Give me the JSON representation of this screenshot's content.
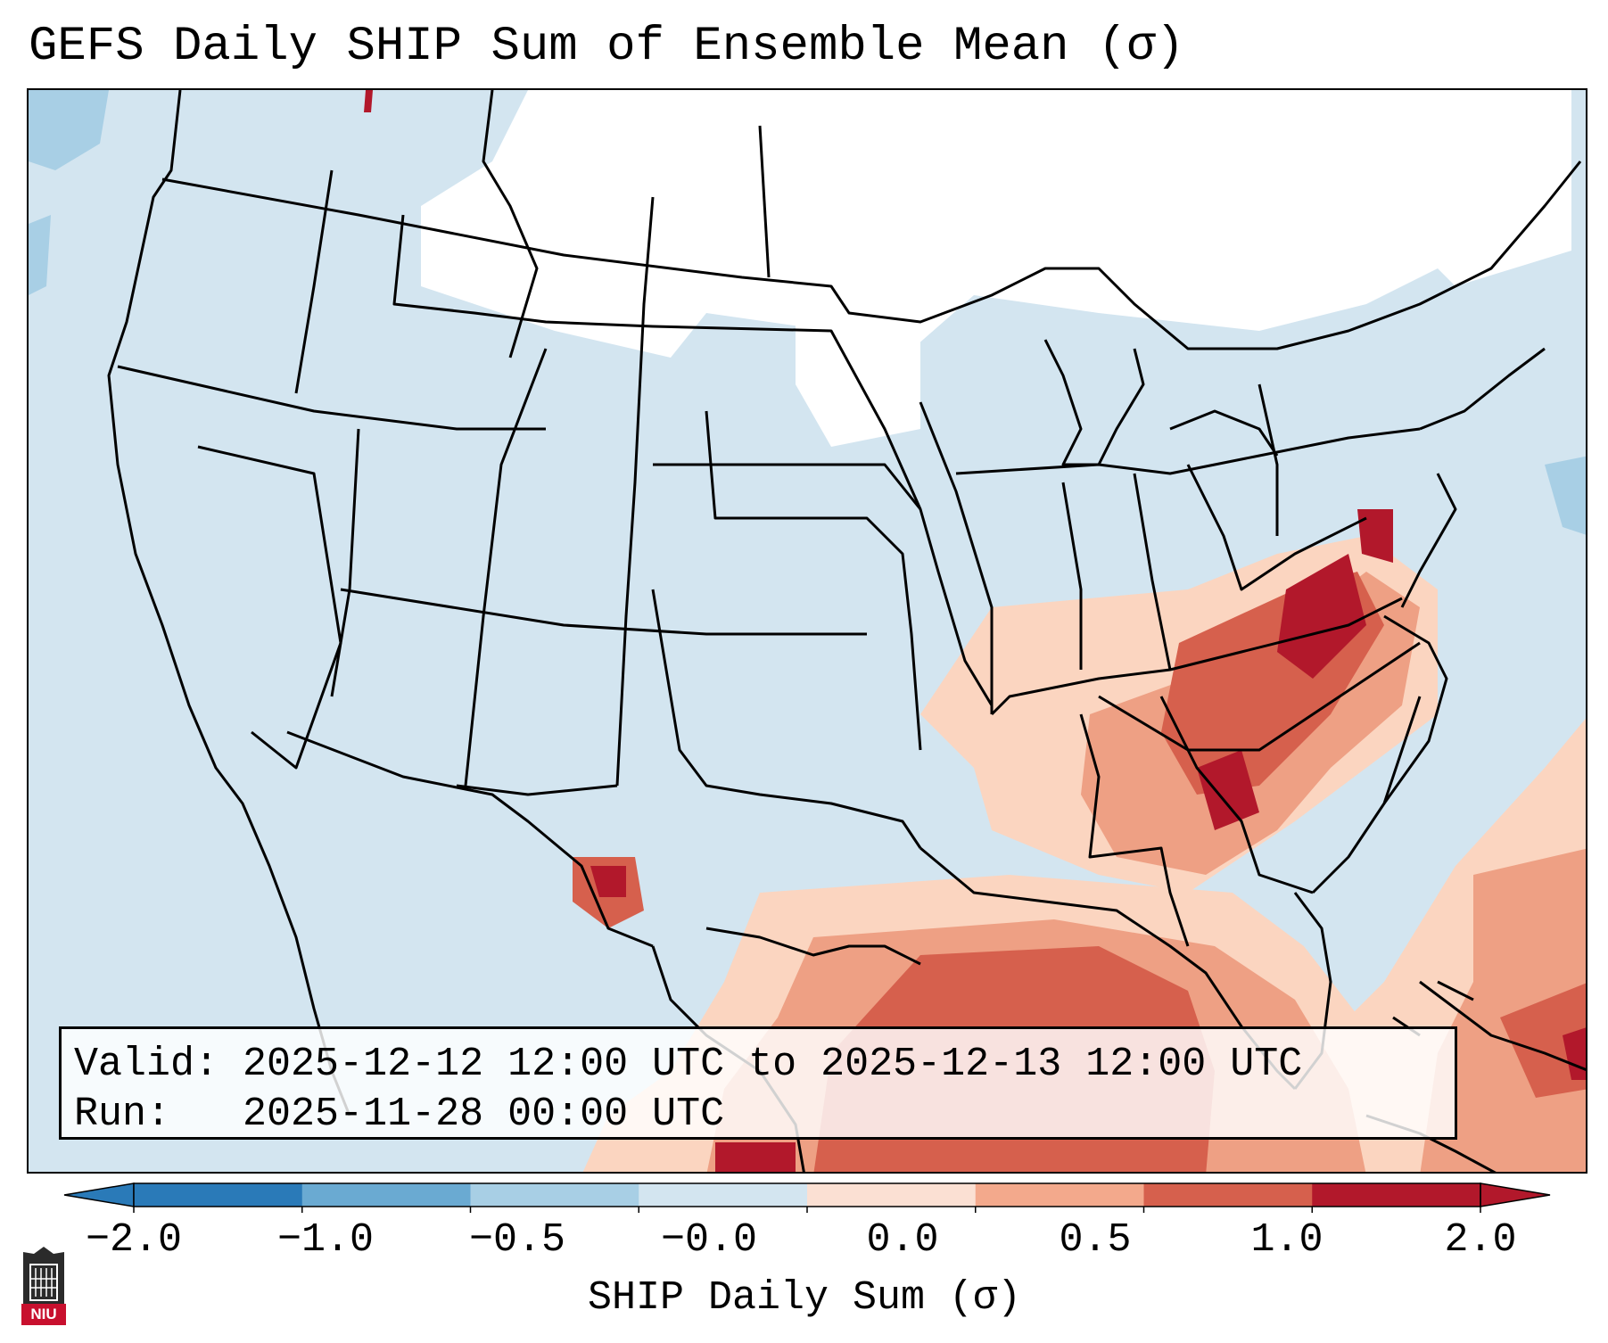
{
  "title": "GEFS Daily SHIP Sum of Ensemble Mean (σ)",
  "info": {
    "valid_label": "Valid:",
    "valid_value": "2025-12-12 12:00 UTC to 2025-12-13 12:00 UTC",
    "run_label": "Run:",
    "run_value": "2025-11-28 00:00 UTC"
  },
  "colorbar": {
    "label": "SHIP Daily Sum (σ)",
    "ticks": [
      "−2.0",
      "−1.0",
      "−0.5",
      "−0.0",
      "0.0",
      "0.5",
      "1.0",
      "2.0"
    ],
    "colors": [
      "#2a7ab8",
      "#6aaad2",
      "#a8cfe5",
      "#d3e5f0",
      "#fbe0d3",
      "#f3a98c",
      "#d6604d",
      "#b2182b"
    ],
    "extend": "both"
  },
  "map_legend": {
    "background": "#d3e5f0",
    "neutral": "#ffffff",
    "light_pos": "#fbd5c0",
    "mid_pos": "#eea084",
    "strong_pos": "#d6604d",
    "max_pos": "#b2182b",
    "light_neg": "#a8cfe5",
    "outline": "#000000"
  },
  "logo": {
    "text": "NIU",
    "name": "niu-logo"
  }
}
